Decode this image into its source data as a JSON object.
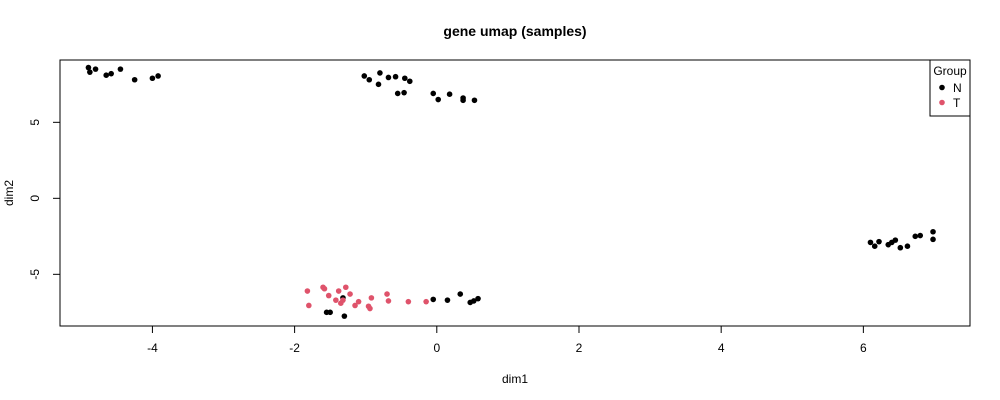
{
  "chart_data": {
    "type": "scatter",
    "title": "gene umap (samples)",
    "xlabel": "dim1",
    "ylabel": "dim2",
    "xlim": [
      -5.3,
      7.5
    ],
    "ylim": [
      -8.4,
      9.1
    ],
    "x_ticks": [
      -4,
      -2,
      0,
      2,
      4,
      6
    ],
    "y_ticks": [
      -5,
      0,
      5
    ],
    "grid": false,
    "legend": {
      "title": "Group",
      "position": "top-right",
      "entries": [
        {
          "label": "N",
          "color": "#000000"
        },
        {
          "label": "T",
          "color": "#DF536B"
        }
      ]
    },
    "series": [
      {
        "name": "N",
        "color": "#000000",
        "points": [
          [
            -4.9,
            8.6
          ],
          [
            -4.88,
            8.3
          ],
          [
            -4.8,
            8.5
          ],
          [
            -4.65,
            8.1
          ],
          [
            -4.58,
            8.2
          ],
          [
            -4.45,
            8.5
          ],
          [
            -4.25,
            7.8
          ],
          [
            -4.0,
            7.9
          ],
          [
            -3.92,
            8.05
          ],
          [
            -1.02,
            8.05
          ],
          [
            -0.95,
            7.8
          ],
          [
            -0.8,
            8.25
          ],
          [
            -0.82,
            7.5
          ],
          [
            -0.68,
            7.95
          ],
          [
            -0.58,
            8.0
          ],
          [
            -0.55,
            6.9
          ],
          [
            -0.46,
            6.95
          ],
          [
            -0.45,
            7.9
          ],
          [
            -0.38,
            7.7
          ],
          [
            -0.05,
            6.9
          ],
          [
            0.02,
            6.5
          ],
          [
            0.18,
            6.85
          ],
          [
            0.37,
            6.6
          ],
          [
            0.37,
            6.45
          ],
          [
            0.53,
            6.45
          ],
          [
            6.1,
            -2.9
          ],
          [
            6.16,
            -3.15
          ],
          [
            6.22,
            -2.85
          ],
          [
            6.35,
            -3.05
          ],
          [
            6.4,
            -2.9
          ],
          [
            6.45,
            -2.75
          ],
          [
            6.52,
            -3.25
          ],
          [
            6.62,
            -3.15
          ],
          [
            6.73,
            -2.5
          ],
          [
            6.8,
            -2.45
          ],
          [
            6.98,
            -2.2
          ],
          [
            6.98,
            -2.7
          ],
          [
            -1.55,
            -7.5
          ],
          [
            -1.5,
            -7.5
          ],
          [
            -1.3,
            -7.75
          ],
          [
            -1.32,
            -6.55
          ],
          [
            -0.05,
            -6.65
          ],
          [
            0.15,
            -6.7
          ],
          [
            0.33,
            -6.3
          ],
          [
            0.47,
            -6.85
          ],
          [
            0.52,
            -6.75
          ],
          [
            0.58,
            -6.6
          ]
        ]
      },
      {
        "name": "T",
        "color": "#DF536B",
        "points": [
          [
            -1.82,
            -6.1
          ],
          [
            -1.8,
            -7.05
          ],
          [
            -1.6,
            -5.85
          ],
          [
            -1.58,
            -5.95
          ],
          [
            -1.52,
            -6.4
          ],
          [
            -1.42,
            -6.7
          ],
          [
            -1.38,
            -6.1
          ],
          [
            -1.35,
            -6.9
          ],
          [
            -1.32,
            -6.7
          ],
          [
            -1.28,
            -5.85
          ],
          [
            -1.22,
            -6.3
          ],
          [
            -1.15,
            -7.05
          ],
          [
            -1.1,
            -6.8
          ],
          [
            -0.96,
            -7.1
          ],
          [
            -0.94,
            -7.25
          ],
          [
            -0.92,
            -6.55
          ],
          [
            -0.7,
            -6.3
          ],
          [
            -0.68,
            -6.75
          ],
          [
            -0.4,
            -6.8
          ],
          [
            -0.15,
            -6.8
          ]
        ]
      }
    ]
  }
}
